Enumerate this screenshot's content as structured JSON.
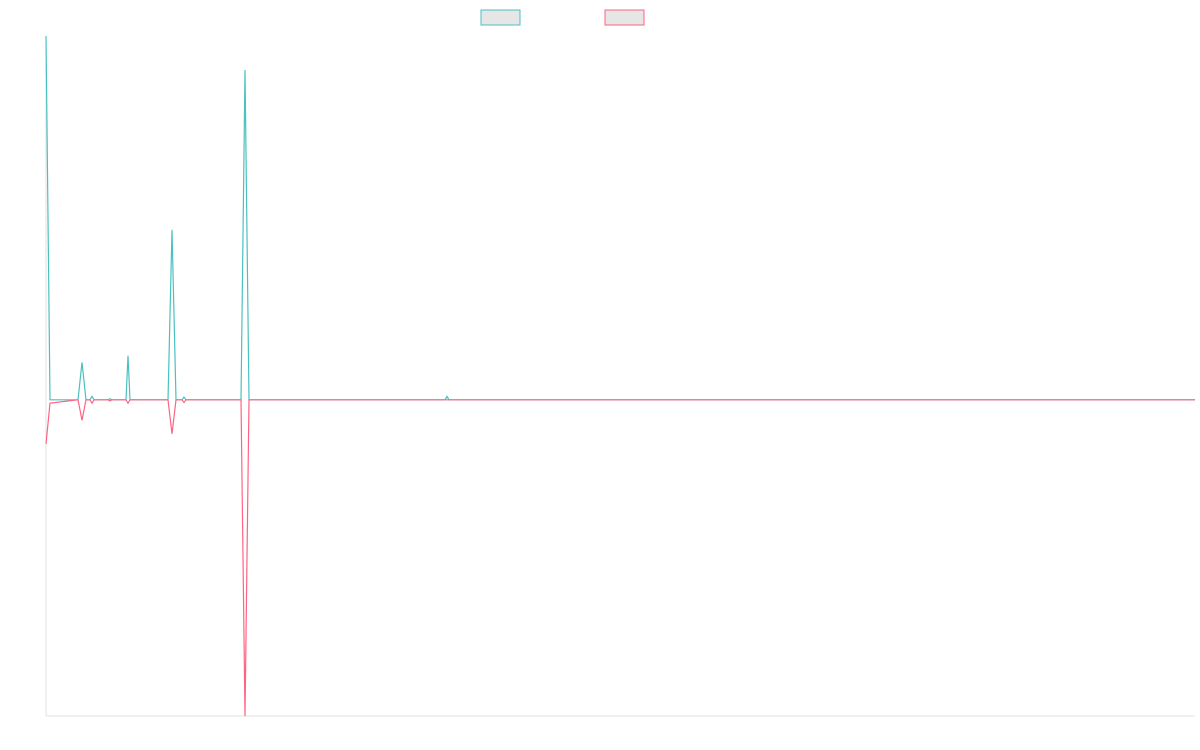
{
  "chart_data": {
    "type": "line",
    "x": [
      0,
      4,
      32,
      36,
      40,
      44,
      46,
      48,
      62,
      64,
      66,
      80,
      82,
      84,
      122,
      126,
      130,
      136,
      138,
      140,
      195,
      199,
      203,
      399,
      401,
      403,
      1149
    ],
    "xlim": [
      0,
      1149
    ],
    "ylim": [
      -93,
      107
    ],
    "series": [
      {
        "color": "#4bc0c0",
        "values": [
          107,
          0,
          0,
          11,
          0,
          0,
          1,
          0,
          0,
          0.3,
          0,
          0,
          13,
          0,
          0,
          50,
          0,
          0,
          0.8,
          0,
          0,
          97,
          0,
          0,
          1,
          0,
          0
        ]
      },
      {
        "color": "#ff6384",
        "values": [
          -13,
          -1,
          0,
          -6,
          0,
          0,
          -1,
          0,
          0,
          -0.3,
          0,
          0,
          -1,
          0,
          0,
          -10,
          0,
          0,
          -0.8,
          0,
          0,
          -93,
          0,
          0,
          0,
          0,
          0
        ]
      }
    ]
  }
}
